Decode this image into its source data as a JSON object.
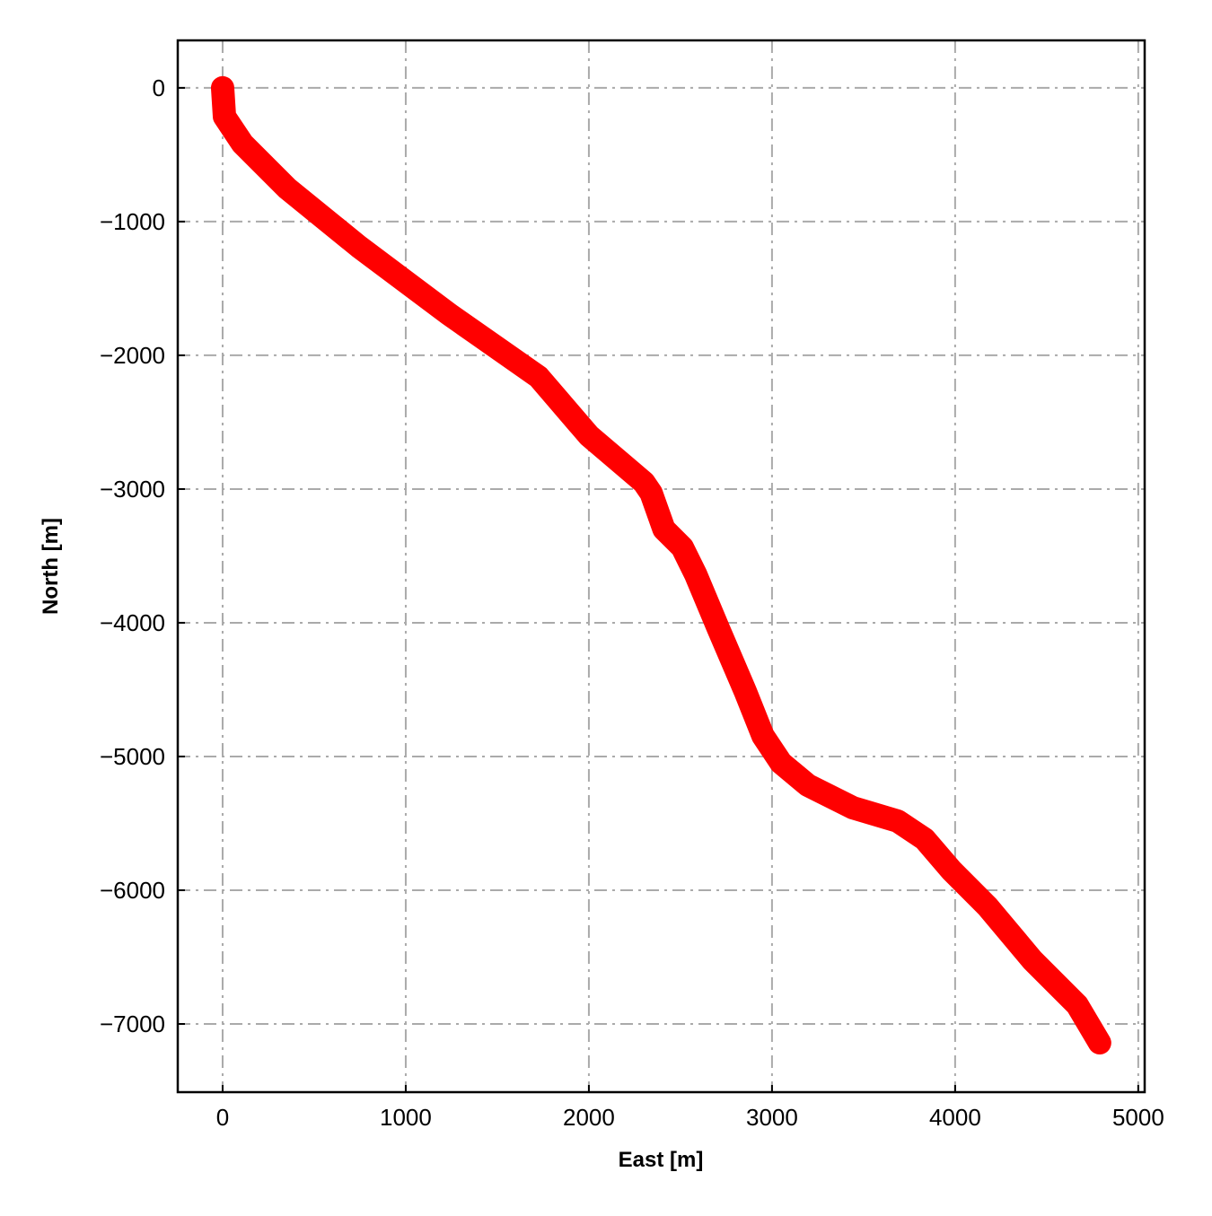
{
  "chart_data": {
    "type": "line",
    "xlabel": "East [m]",
    "ylabel": "North [m]",
    "series": [
      {
        "color": "#ff0000",
        "x": [
          0,
          10,
          108,
          353,
          745,
          1235,
          1725,
          2000,
          2300,
          2340,
          2410,
          2510,
          2583,
          2706,
          2853,
          2951,
          3049,
          3196,
          3441,
          3686,
          3833,
          3980,
          4176,
          4422,
          4667,
          4789
        ],
        "values": [
          0,
          -215,
          -416,
          -752,
          -1188,
          -1691,
          -2161,
          -2600,
          -2950,
          -3030,
          -3300,
          -3436,
          -3638,
          -4040,
          -4510,
          -4846,
          -5047,
          -5215,
          -5383,
          -5483,
          -5617,
          -5852,
          -6121,
          -6523,
          -6859,
          -7141
        ]
      }
    ],
    "xlim": [
      -245,
      5035
    ],
    "ylim": [
      -7510,
      355
    ],
    "xticks": [
      0,
      1000,
      2000,
      3000,
      4000,
      5000
    ],
    "yticks": [
      0,
      {
        "value": -1000,
        "label": "−1000"
      },
      {
        "value": -2000,
        "label": "−2000"
      },
      {
        "value": -3000,
        "label": "−3000"
      },
      {
        "value": -4000,
        "label": "−4000"
      },
      {
        "value": -5000,
        "label": "−5000"
      },
      {
        "value": -6000,
        "label": "−6000"
      },
      {
        "value": -7000,
        "label": "−7000"
      }
    ],
    "grid": true
  }
}
